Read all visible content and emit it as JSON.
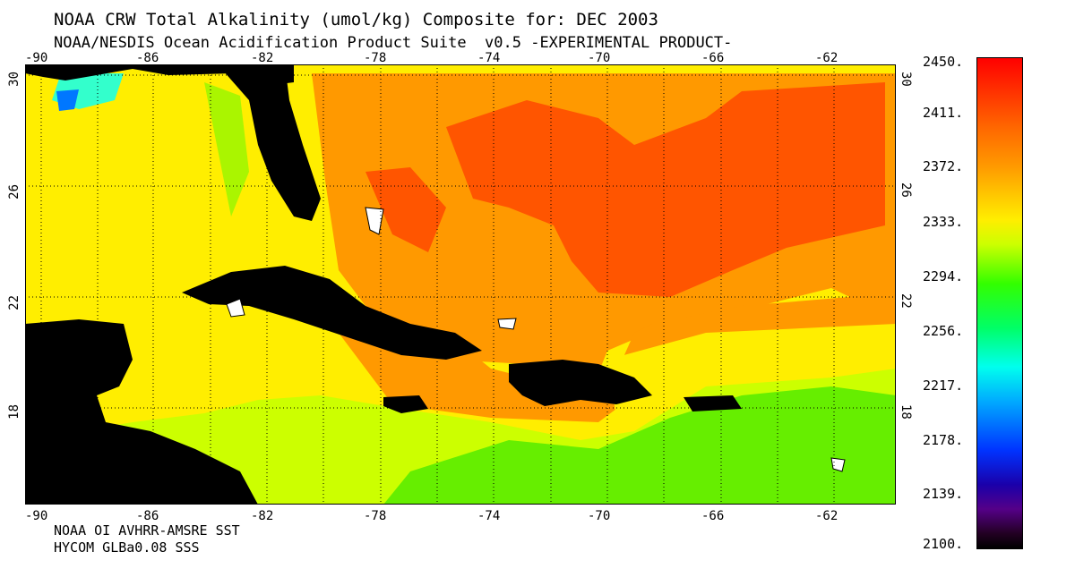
{
  "header": {
    "title": "NOAA CRW Total Alkalinity (umol/kg) Composite for: DEC 2003",
    "subtitle": "NOAA/NESDIS Ocean Acidification Product Suite  v0.5 -EXPERIMENTAL PRODUCT-"
  },
  "footer": {
    "line1": "NOAA OI AVHRR-AMSRE SST",
    "line2": "HYCOM GLBa0.08 SSS"
  },
  "map": {
    "lon_ticks": [
      "-90",
      "-86",
      "-82",
      "-78",
      "-74",
      "-70",
      "-66",
      "-62"
    ],
    "lat_ticks": [
      "30",
      "26",
      "22",
      "18"
    ],
    "colors": {
      "land": "#000000",
      "yellow": "#ffee00",
      "orange": "#ff9900",
      "redorange": "#ff5500",
      "lime": "#ccff00",
      "green": "#66ee00",
      "cyan": "#33ffcc"
    }
  },
  "colorbar": {
    "labels": [
      "2450.",
      "2411.",
      "2372.",
      "2333.",
      "2294.",
      "2256.",
      "2217.",
      "2178.",
      "2139.",
      "2100."
    ],
    "min": 2100,
    "max": 2450
  }
}
